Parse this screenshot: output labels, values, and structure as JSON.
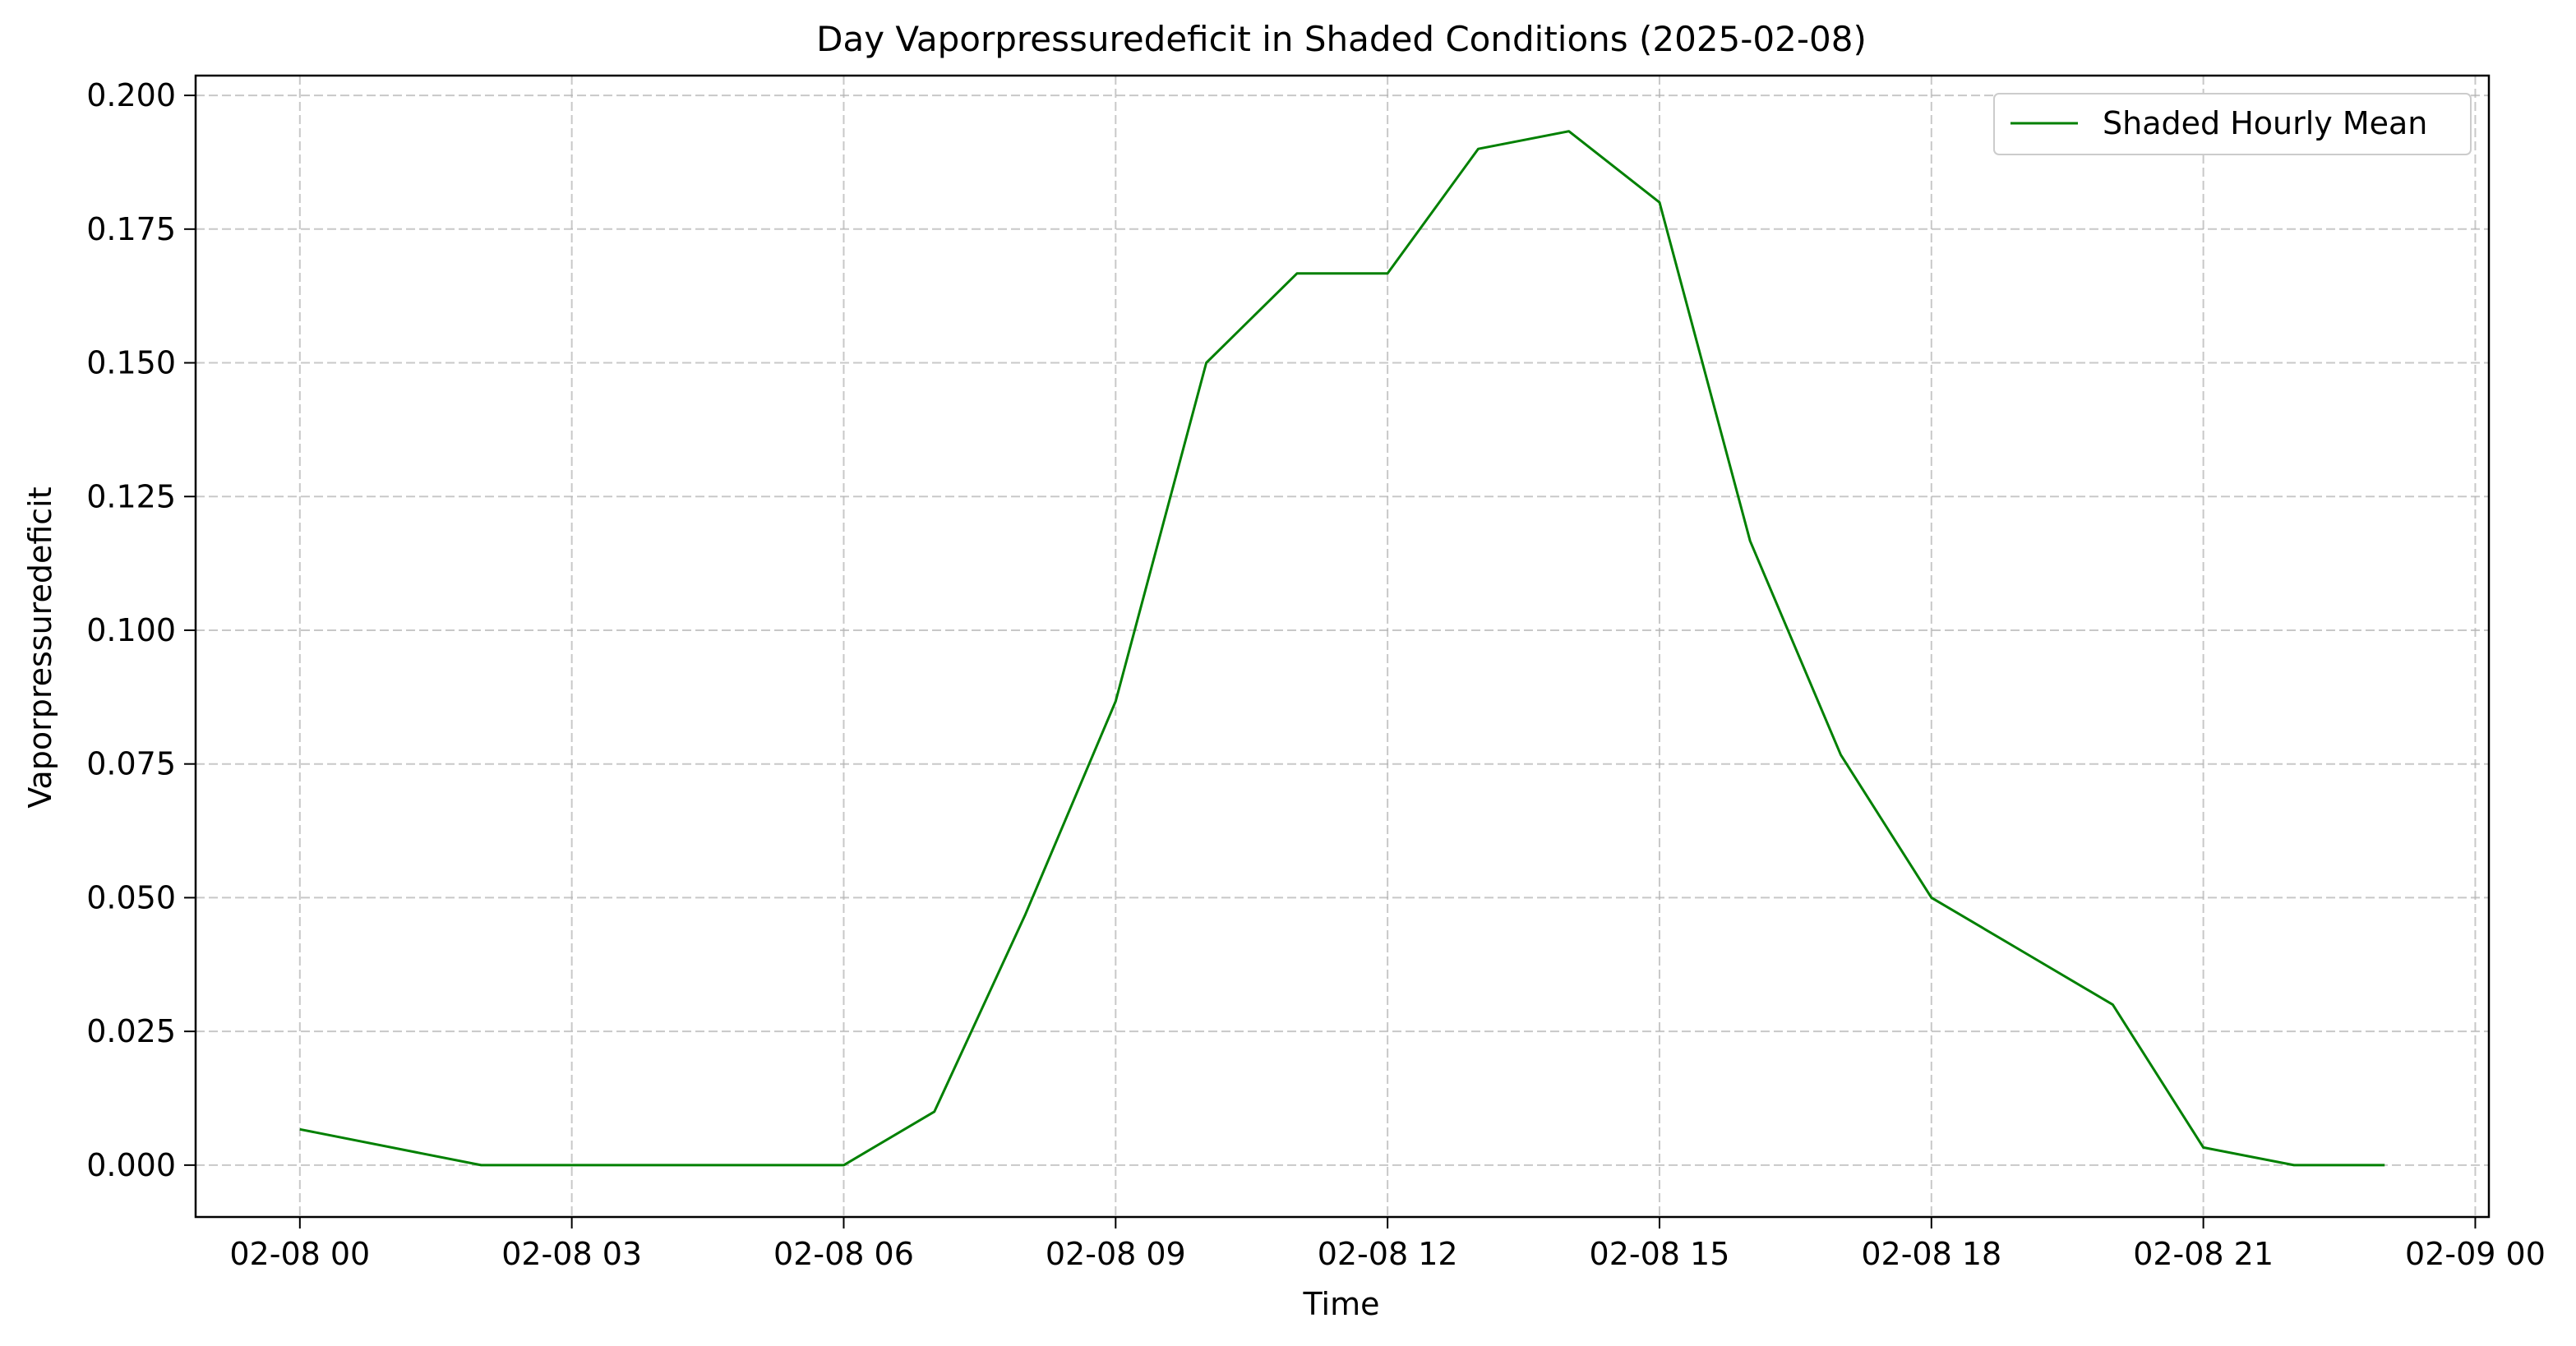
{
  "chart_data": {
    "type": "line",
    "title": "Day Vaporpressuredeficit in Shaded Conditions (2025-02-08)",
    "xlabel": "Time",
    "ylabel": "Vaporpressuredeficit",
    "x_tick_labels": [
      "02-08 00",
      "02-08 03",
      "02-08 06",
      "02-08 09",
      "02-08 12",
      "02-08 15",
      "02-08 18",
      "02-08 21",
      "02-09 00"
    ],
    "x_tick_hours": [
      0,
      3,
      6,
      9,
      12,
      15,
      18,
      21,
      24
    ],
    "y_tick_labels": [
      "0.000",
      "0.025",
      "0.050",
      "0.075",
      "0.100",
      "0.125",
      "0.150",
      "0.175",
      "0.200"
    ],
    "y_tick_values": [
      0,
      0.025,
      0.05,
      0.075,
      0.1,
      0.125,
      0.15,
      0.175,
      0.2
    ],
    "xlim_hours": [
      -1.15,
      24.15
    ],
    "ylim": [
      -0.0097,
      0.2037
    ],
    "grid": true,
    "legend_position": "top-right",
    "series": [
      {
        "name": "Shaded Hourly Mean",
        "color": "#008000",
        "x_hours": [
          0,
          2,
          3,
          4,
          5,
          6,
          7,
          8,
          9,
          10,
          11,
          12,
          13,
          14,
          15,
          16,
          17,
          18,
          19,
          20,
          21,
          22,
          23
        ],
        "values": [
          0.0067,
          0.0,
          0.0,
          0.0,
          0.0,
          0.0,
          0.01,
          0.0467,
          0.0867,
          0.15,
          0.1667,
          0.1667,
          0.19,
          0.1933,
          0.18,
          0.1167,
          0.0767,
          0.05,
          0.04,
          0.03,
          0.0033,
          0.0,
          0.0
        ]
      }
    ]
  }
}
